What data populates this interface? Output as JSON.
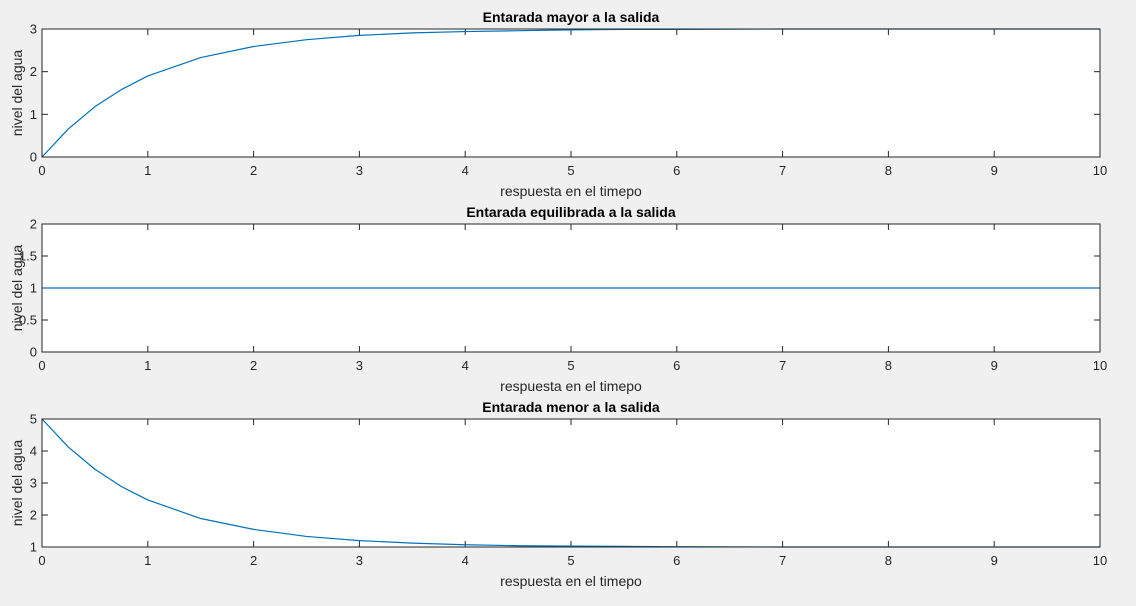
{
  "chart_data": [
    {
      "type": "line",
      "title": "Entarada mayor a la salida",
      "xlabel": "respuesta en el timepo",
      "ylabel": "nivel del agua",
      "xlim": [
        0,
        10
      ],
      "ylim": [
        0,
        3
      ],
      "xticks": [
        "0",
        "1",
        "2",
        "3",
        "4",
        "5",
        "6",
        "7",
        "8",
        "9",
        "10"
      ],
      "yticks": [
        "0",
        "1",
        "2",
        "3"
      ],
      "series": [
        {
          "x": [
            0,
            0.25,
            0.5,
            0.75,
            1,
            1.5,
            2,
            2.5,
            3,
            3.5,
            4,
            4.5,
            5,
            5.5,
            6,
            7,
            8,
            9,
            10
          ],
          "y": [
            0,
            0.66,
            1.18,
            1.58,
            1.9,
            2.33,
            2.59,
            2.75,
            2.85,
            2.91,
            2.94,
            2.96,
            2.98,
            2.99,
            2.99,
            3.0,
            3.0,
            3.0,
            3.0
          ]
        }
      ],
      "color": "#0072bd",
      "grid": false
    },
    {
      "type": "line",
      "title": "Entarada equilibrada a la salida",
      "xlabel": "respuesta en el timepo",
      "ylabel": "nivel del agua",
      "xlim": [
        0,
        10
      ],
      "ylim": [
        0,
        2
      ],
      "xticks": [
        "0",
        "1",
        "2",
        "3",
        "4",
        "5",
        "6",
        "7",
        "8",
        "9",
        "10"
      ],
      "yticks": [
        "0",
        "0.5",
        "1",
        "1.5",
        "2"
      ],
      "series": [
        {
          "x": [
            0,
            10
          ],
          "y": [
            1,
            1
          ]
        }
      ],
      "color": "#0072bd",
      "grid": false
    },
    {
      "type": "line",
      "title": "Entarada menor a la salida",
      "xlabel": "respuesta en el timepo",
      "ylabel": "nivel del agua",
      "xlim": [
        0,
        10
      ],
      "ylim": [
        1,
        5
      ],
      "xticks": [
        "0",
        "1",
        "2",
        "3",
        "4",
        "5",
        "6",
        "7",
        "8",
        "9",
        "10"
      ],
      "yticks": [
        "1",
        "2",
        "3",
        "4",
        "5"
      ],
      "series": [
        {
          "x": [
            0,
            0.25,
            0.5,
            0.75,
            1,
            1.5,
            2,
            2.5,
            3,
            3.5,
            4,
            4.5,
            5,
            5.5,
            6,
            7,
            8,
            9,
            10
          ],
          "y": [
            5,
            4.12,
            3.43,
            2.89,
            2.47,
            1.89,
            1.55,
            1.33,
            1.2,
            1.12,
            1.07,
            1.04,
            1.03,
            1.02,
            1.01,
            1.0,
            1.0,
            1.0,
            1.0
          ]
        }
      ],
      "color": "#0072bd",
      "grid": false
    }
  ]
}
